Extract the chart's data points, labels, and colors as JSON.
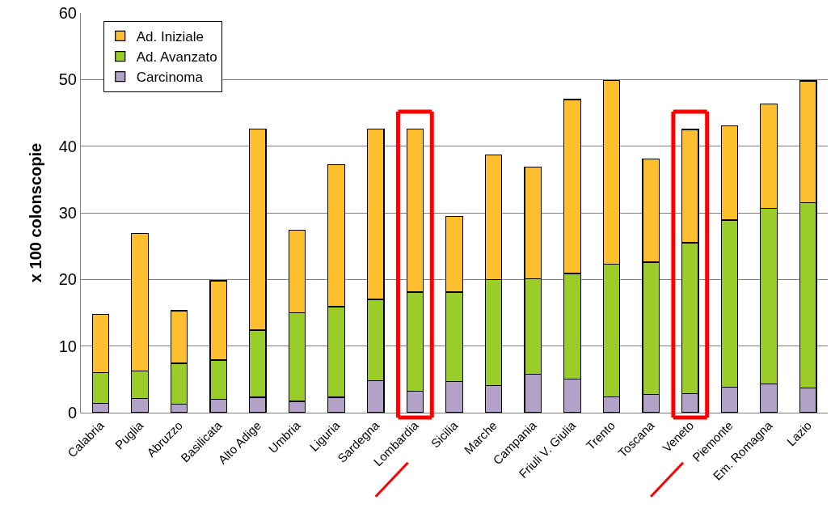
{
  "chart_data": {
    "type": "bar",
    "stacked": true,
    "ylabel": "x 100 colonscopie",
    "categories": [
      "Calabria",
      "Puglia",
      "Abruzzo",
      "Basilicata",
      "Alto Adige",
      "Umbria",
      "Liguria",
      "Sardegna",
      "Lombardia",
      "Sicilia",
      "Marche",
      "Campania",
      "Friuli V. Giulia",
      "Trento",
      "Toscana",
      "Veneto",
      "Piemonte",
      "Em. Romagna",
      "Lazio"
    ],
    "series": [
      {
        "name": "Carcinoma",
        "color": "#b3a2c7",
        "values": [
          1.4,
          2.1,
          1.3,
          2.0,
          2.3,
          1.7,
          2.3,
          4.8,
          3.2,
          4.7,
          4.1,
          5.8,
          5.0,
          2.4,
          2.7,
          2.9,
          3.8,
          4.3,
          3.7
        ]
      },
      {
        "name": "Ad. Avanzato",
        "color": "#9acd2a",
        "values": [
          4.6,
          4.2,
          6.1,
          5.9,
          10.1,
          13.3,
          13.6,
          12.2,
          14.9,
          13.4,
          15.9,
          14.3,
          15.9,
          19.9,
          19.9,
          22.6,
          25.1,
          26.4,
          27.8
        ]
      },
      {
        "name": "Ad. Iniziale",
        "color": "#fdbf2d",
        "values": [
          8.8,
          20.6,
          7.9,
          11.9,
          30.2,
          12.4,
          21.3,
          25.6,
          24.5,
          11.4,
          18.7,
          16.8,
          26.1,
          27.6,
          15.5,
          17.0,
          14.2,
          15.6,
          18.3
        ]
      }
    ],
    "ylim": [
      0,
      60
    ],
    "yticks": [
      0,
      10,
      20,
      30,
      40,
      50,
      60
    ],
    "grid": "y",
    "legend": "top left"
  }
}
